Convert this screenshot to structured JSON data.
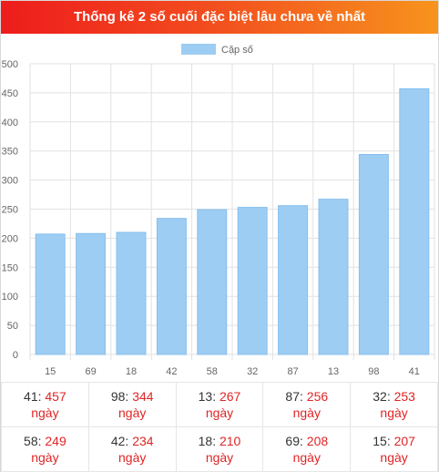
{
  "header": {
    "title": "Thống kê 2 số cuối đặc biệt lâu chưa về nhất"
  },
  "chart_data": {
    "type": "bar",
    "title": "",
    "xlabel": "",
    "ylabel": "",
    "categories": [
      "15",
      "69",
      "18",
      "42",
      "58",
      "32",
      "87",
      "13",
      "98",
      "41"
    ],
    "series": [
      {
        "name": "Cặp số",
        "values": [
          207,
          208,
          210,
          234,
          249,
          253,
          256,
          267,
          344,
          457
        ]
      }
    ],
    "ylim": [
      0,
      500
    ],
    "yticks": [
      "0",
      "50",
      "100",
      "150",
      "200",
      "250",
      "300",
      "350",
      "400",
      "450",
      "500"
    ],
    "grid": true,
    "legend_position": "top-center",
    "colors": {
      "bar_fill": "#9dcdf3",
      "bar_stroke": "#86bfee",
      "grid": "#e2e2e2"
    }
  },
  "stats": {
    "unit": "ngày",
    "rows": [
      [
        {
          "num": "41",
          "days": "457"
        },
        {
          "num": "98",
          "days": "344"
        },
        {
          "num": "13",
          "days": "267"
        },
        {
          "num": "87",
          "days": "256"
        },
        {
          "num": "32",
          "days": "253"
        }
      ],
      [
        {
          "num": "58",
          "days": "249"
        },
        {
          "num": "42",
          "days": "234"
        },
        {
          "num": "18",
          "days": "210"
        },
        {
          "num": "69",
          "days": "208"
        },
        {
          "num": "15",
          "days": "207"
        }
      ]
    ]
  }
}
